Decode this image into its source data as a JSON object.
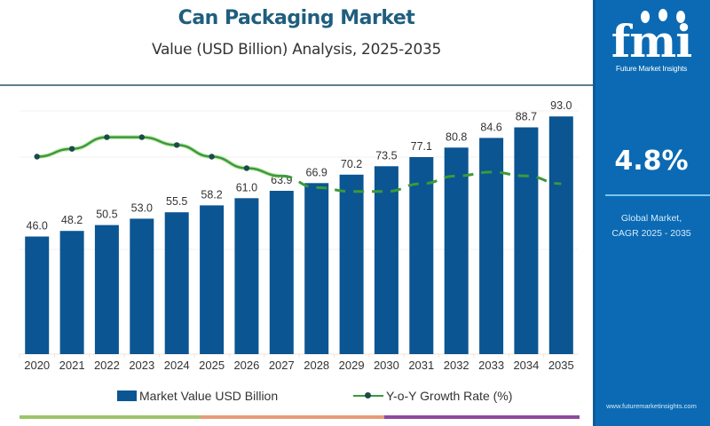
{
  "header": {
    "title": "Can Packaging Market",
    "subtitle": "Value (USD Billion) Analysis, 2025-2035"
  },
  "sidebar": {
    "logo_text": "fmi",
    "logo_subtitle": "Future Market Insights",
    "cagr_value": "4.8%",
    "cagr_label_line1": "Global Market,",
    "cagr_label_line2": "CAGR 2025 - 2035",
    "website": "www.futuremarketinsights.com"
  },
  "colors": {
    "bar": "#0b5592",
    "line": "#3b9a3b",
    "marker": "#1c4a4a",
    "title": "#1f5e7e",
    "sidebar": "#0b6ab3",
    "bottom_bar": [
      "#9cc46a",
      "#e89a78",
      "#8e4a9c"
    ]
  },
  "chart_data": {
    "type": "bar",
    "title": "Can Packaging Market",
    "subtitle": "Value (USD Billion) Analysis, 2025-2035",
    "xlabel": "",
    "ylabel": "",
    "grid": false,
    "legend_position": "bottom",
    "categories": [
      "2020",
      "2021",
      "2022",
      "2023",
      "2024",
      "2025",
      "2026",
      "2027",
      "2028",
      "2029",
      "2030",
      "2031",
      "2032",
      "2033",
      "2034",
      "2035"
    ],
    "ylim": [
      0,
      100
    ],
    "series": [
      {
        "name": "Market Value USD Billion",
        "type": "bar",
        "values": [
          46.0,
          48.2,
          50.5,
          53.0,
          55.5,
          58.2,
          61.0,
          63.9,
          66.9,
          70.2,
          73.5,
          77.1,
          80.8,
          84.6,
          88.7,
          93.0
        ],
        "labels": [
          "46.0",
          "48.2",
          "50.5",
          "53.0",
          "55.5",
          "58.2",
          "61.0",
          "63.9",
          "66.9",
          "70.2",
          "73.5",
          "77.1",
          "80.8",
          "84.6",
          "88.7",
          "93.0"
        ]
      },
      {
        "name": "Y-o-Y Growth Rate (%)",
        "type": "line",
        "secondary_axis": true,
        "axis_shown": false,
        "values": [
          5.1,
          5.3,
          5.6,
          5.6,
          5.4,
          5.1,
          4.8,
          4.6,
          4.3,
          4.2,
          4.2,
          4.4,
          4.6,
          4.7,
          4.6,
          4.4
        ],
        "y2lim": [
          0,
          6.6
        ],
        "solid_through": "2027",
        "dashed_from": "2027"
      }
    ]
  },
  "legend": {
    "bar_label": "Market Value USD Billion",
    "line_label": "Y-o-Y Growth Rate (%)"
  }
}
